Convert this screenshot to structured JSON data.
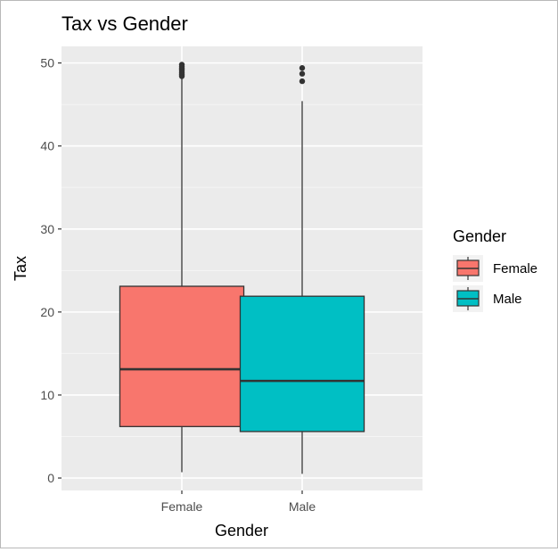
{
  "chart_data": {
    "type": "boxplot",
    "title": "Tax vs Gender",
    "xlabel": "Gender",
    "ylabel": "Tax",
    "ylim": [
      -1.5,
      52
    ],
    "yticks": [
      0,
      10,
      20,
      30,
      40,
      50
    ],
    "ytick_labels": [
      "0",
      "10",
      "20",
      "30",
      "40",
      "50"
    ],
    "grid": true,
    "legend": {
      "title": "Gender",
      "placement": "right"
    },
    "categories": [
      "Female",
      "Male"
    ],
    "boxes": [
      {
        "name": "Female",
        "color": "#F8766D",
        "whisker_low": 0.7,
        "q1": 6.2,
        "median": 13.1,
        "q3": 23.1,
        "whisker_high": 48.2,
        "outliers": [
          48.4,
          48.6,
          48.8,
          49.0,
          49.2,
          49.4,
          49.6,
          49.8
        ]
      },
      {
        "name": "Male",
        "color": "#00BFC4",
        "whisker_low": 0.5,
        "q1": 5.6,
        "median": 11.7,
        "q3": 21.9,
        "whisker_high": 45.4,
        "outliers": [
          47.8,
          48.7,
          49.4
        ]
      }
    ]
  }
}
